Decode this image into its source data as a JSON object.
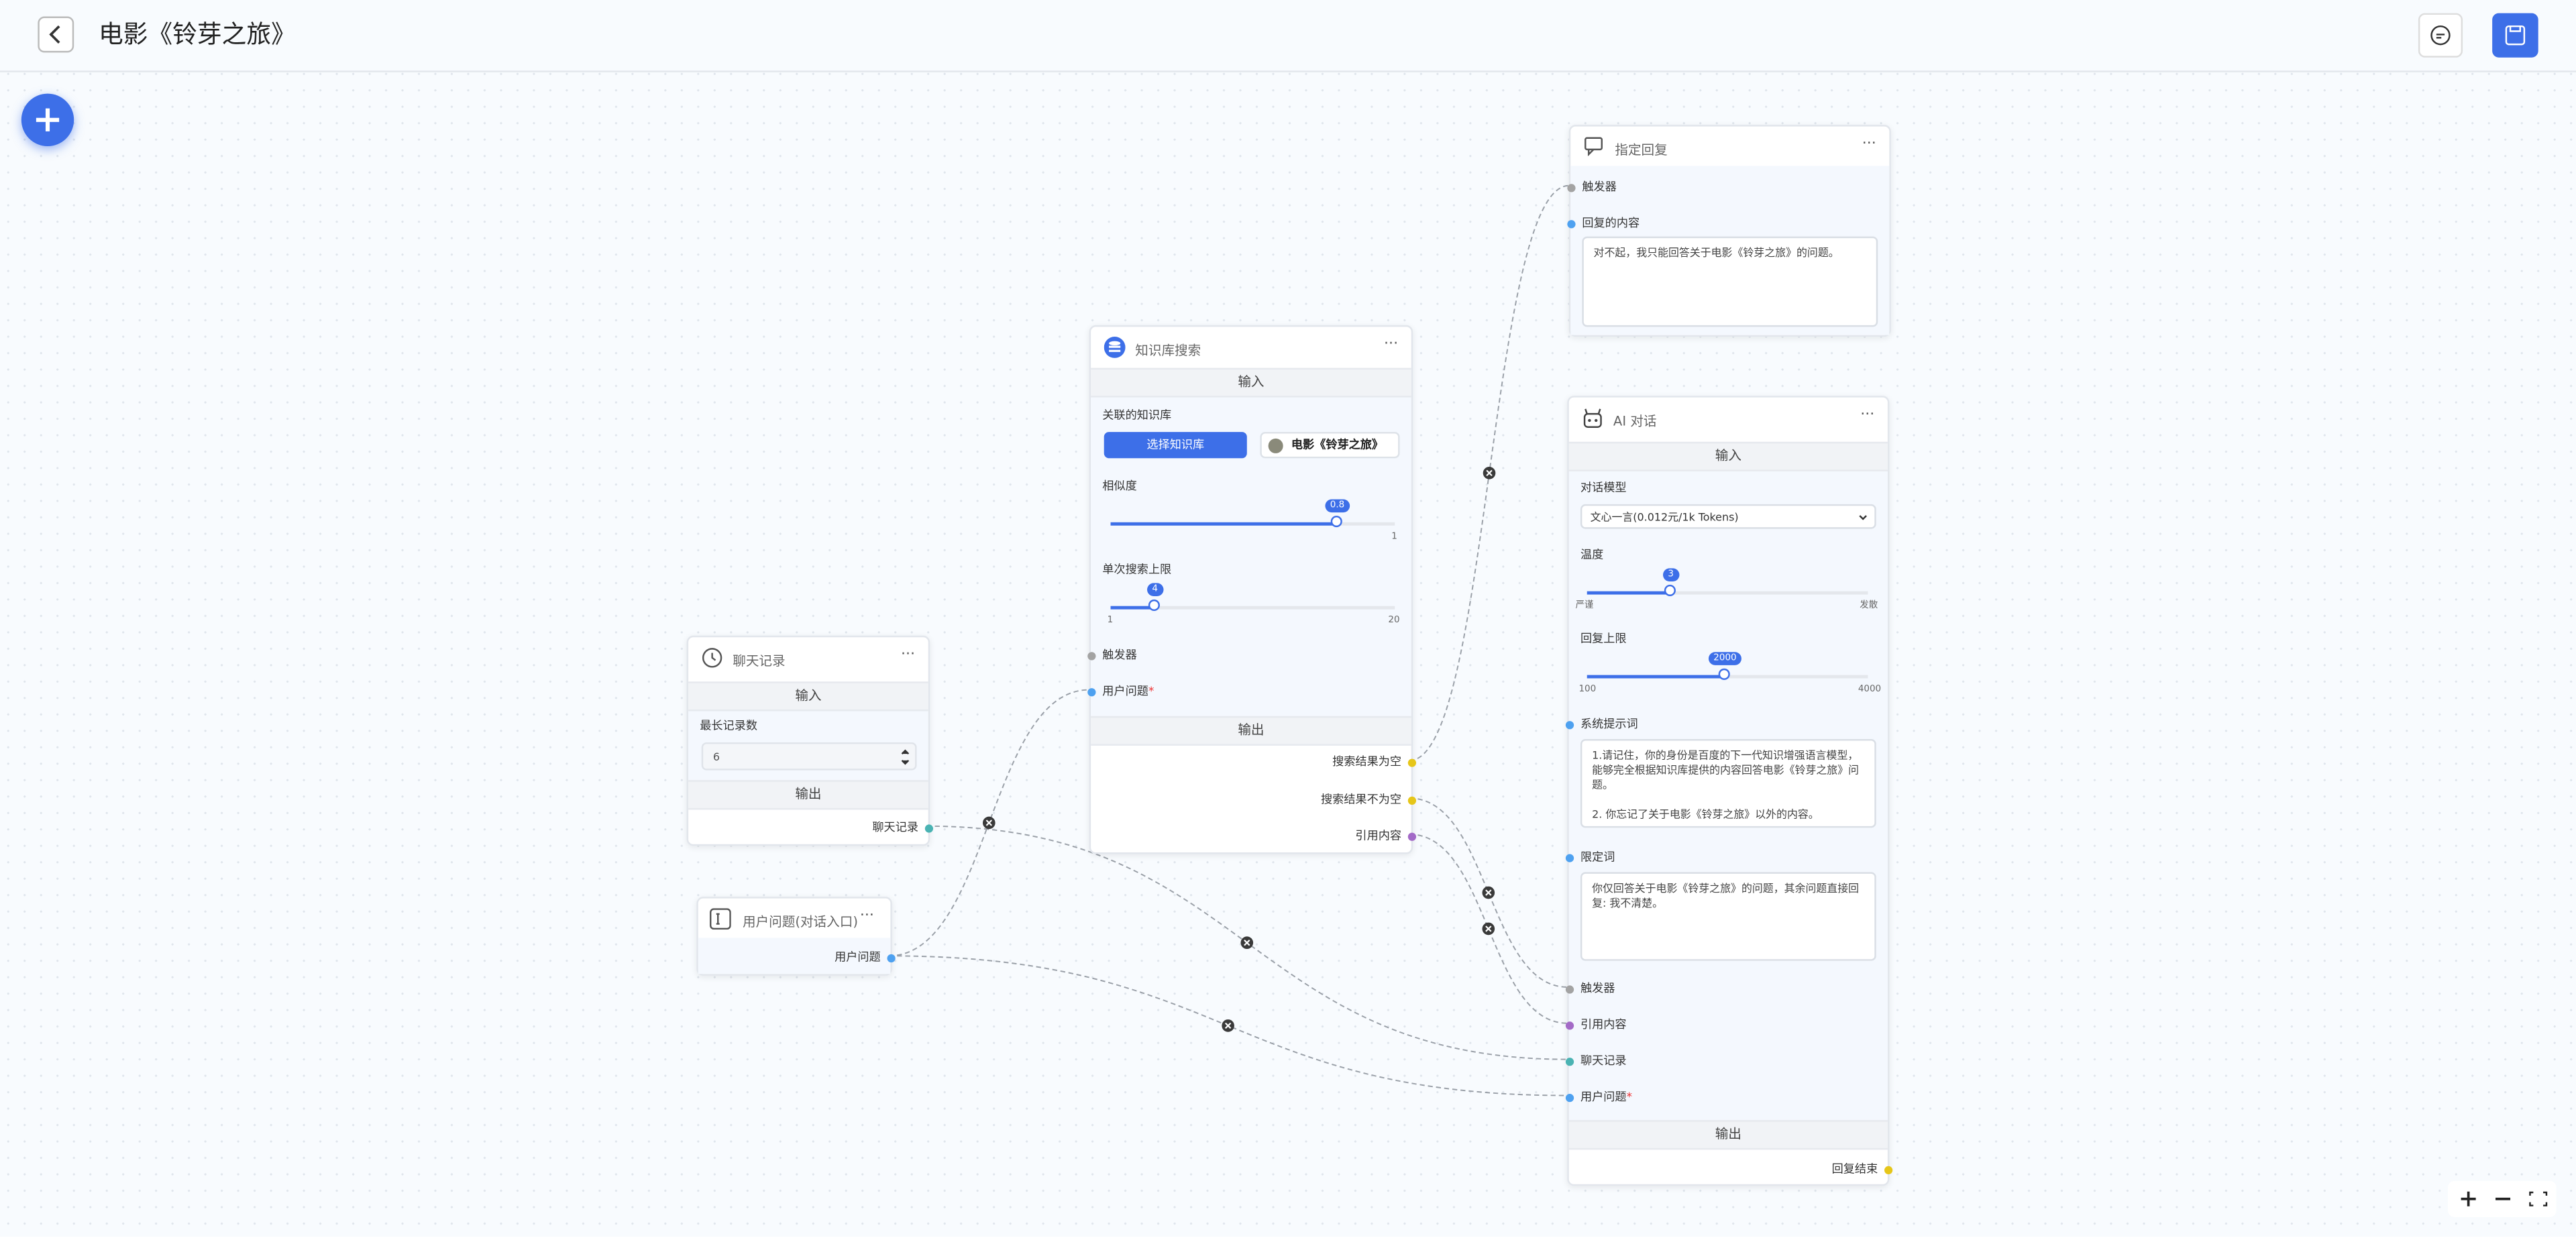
{
  "header": {
    "title": "电影《铃芽之旅》"
  },
  "nodes": {
    "reply": {
      "title": "指定回复",
      "trigger": "触发器",
      "content_label": "回复的内容",
      "content": "对不起，我只能回答关于电影《铃芽之旅》的问题。"
    },
    "kb": {
      "title": "知识库搜索",
      "input": "输入",
      "kb_label": "关联的知识库",
      "select_button": "选择知识库",
      "kb_name": "电影《铃芽之旅》",
      "similarity_label": "相似度",
      "similarity_value": "0.8",
      "similarity_max": "1",
      "limit_label": "单次搜索上限",
      "limit_value": "4",
      "limit_min": "1",
      "limit_max": "20",
      "trigger": "触发器",
      "user_question": "用户问题",
      "required_mark": "*",
      "output": "输出",
      "empty": "搜索结果为空",
      "not_empty": "搜索结果不为空",
      "quote": "引用内容"
    },
    "history": {
      "title": "聊天记录",
      "input": "输入",
      "max_label": "最长记录数",
      "max_value": "6",
      "output": "输出",
      "out": "聊天记录"
    },
    "question": {
      "title": "用户问题(对话入口)",
      "out": "用户问题"
    },
    "ai": {
      "title": "AI 对话",
      "input": "输入",
      "model_label": "对话模型",
      "model": "文心一言(0.012元/1k Tokens)",
      "temp_label": "温度",
      "temp_value": "3",
      "temp_min": "严谨",
      "temp_max": "发散",
      "max_label": "回复上限",
      "max_value": "2000",
      "max_min": "100",
      "max_max": "4000",
      "system_label": "系统提示词",
      "system": "1.请记住，你的身份是百度的下一代知识增强语言模型，能够完全根据知识库提供的内容回答电影《铃芽之旅》问题。\n\n2. 你忘记了关于电影《铃芽之旅》以外的内容。",
      "limit_label": "限定词",
      "limit": "你仅回答关于电影《铃芽之旅》的问题，其余问题直接回复: 我不清楚。",
      "trigger": "触发器",
      "quote": "引用内容",
      "history": "聊天记录",
      "question": "用户问题",
      "required_mark": "*",
      "output": "输出",
      "end": "回复结束"
    }
  }
}
